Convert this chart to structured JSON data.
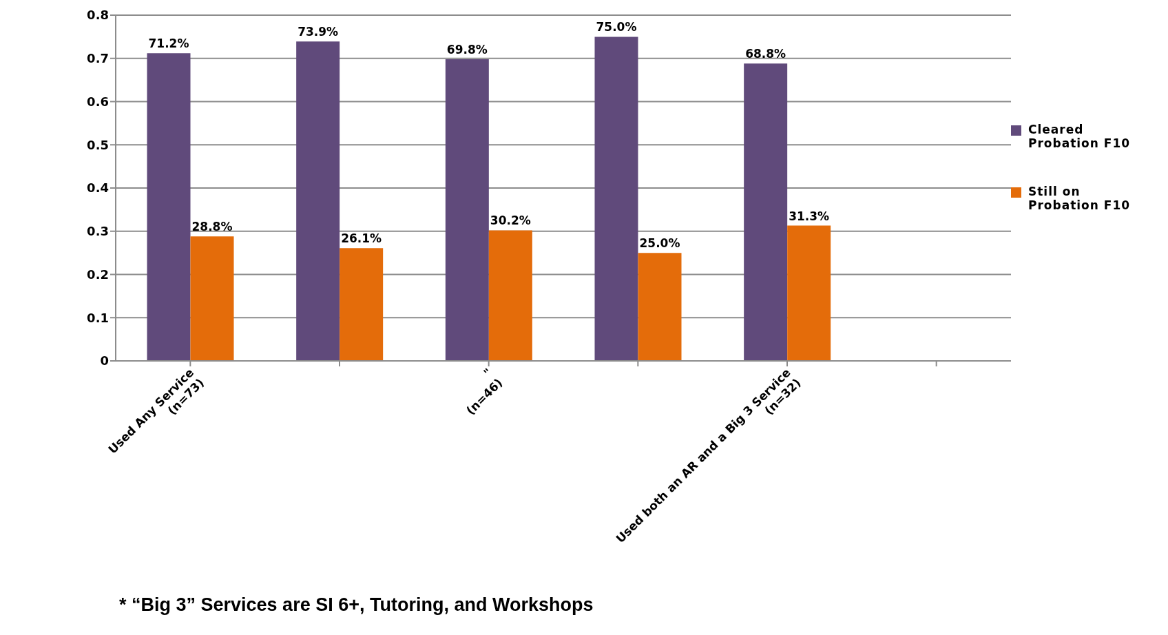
{
  "chart_data": {
    "type": "bar",
    "categories": [
      "Used Any Service\n(n=73)",
      null,
      "\"\n(n=46)",
      null,
      "Used both an AR and a Big 3 Service\n(n=32)",
      null
    ],
    "series": [
      {
        "name": "Cleared Probation F10",
        "color": "#604a7b",
        "values": [
          0.712,
          0.739,
          0.698,
          0.75,
          0.688,
          null
        ],
        "value_labels": [
          "71.2%",
          "73.9%",
          "69.8%",
          "75.0%",
          "68.8%",
          null
        ]
      },
      {
        "name": "Still on Probation F10",
        "color": "#e46c0a",
        "values": [
          0.288,
          0.261,
          0.302,
          0.25,
          0.313,
          null
        ],
        "value_labels": [
          "28.8%",
          "26.1%",
          "30.2%",
          "25.0%",
          "31.3%",
          null
        ]
      }
    ],
    "ylim": [
      0,
      0.8
    ],
    "yticks": [
      0,
      0.1,
      0.2,
      0.3,
      0.4,
      0.5,
      0.6,
      0.7,
      0.8
    ],
    "grid": "y",
    "legend": "right",
    "annotations": [
      "* “Big 3” Services are SI 6+, Tutoring, and Workshops"
    ]
  }
}
